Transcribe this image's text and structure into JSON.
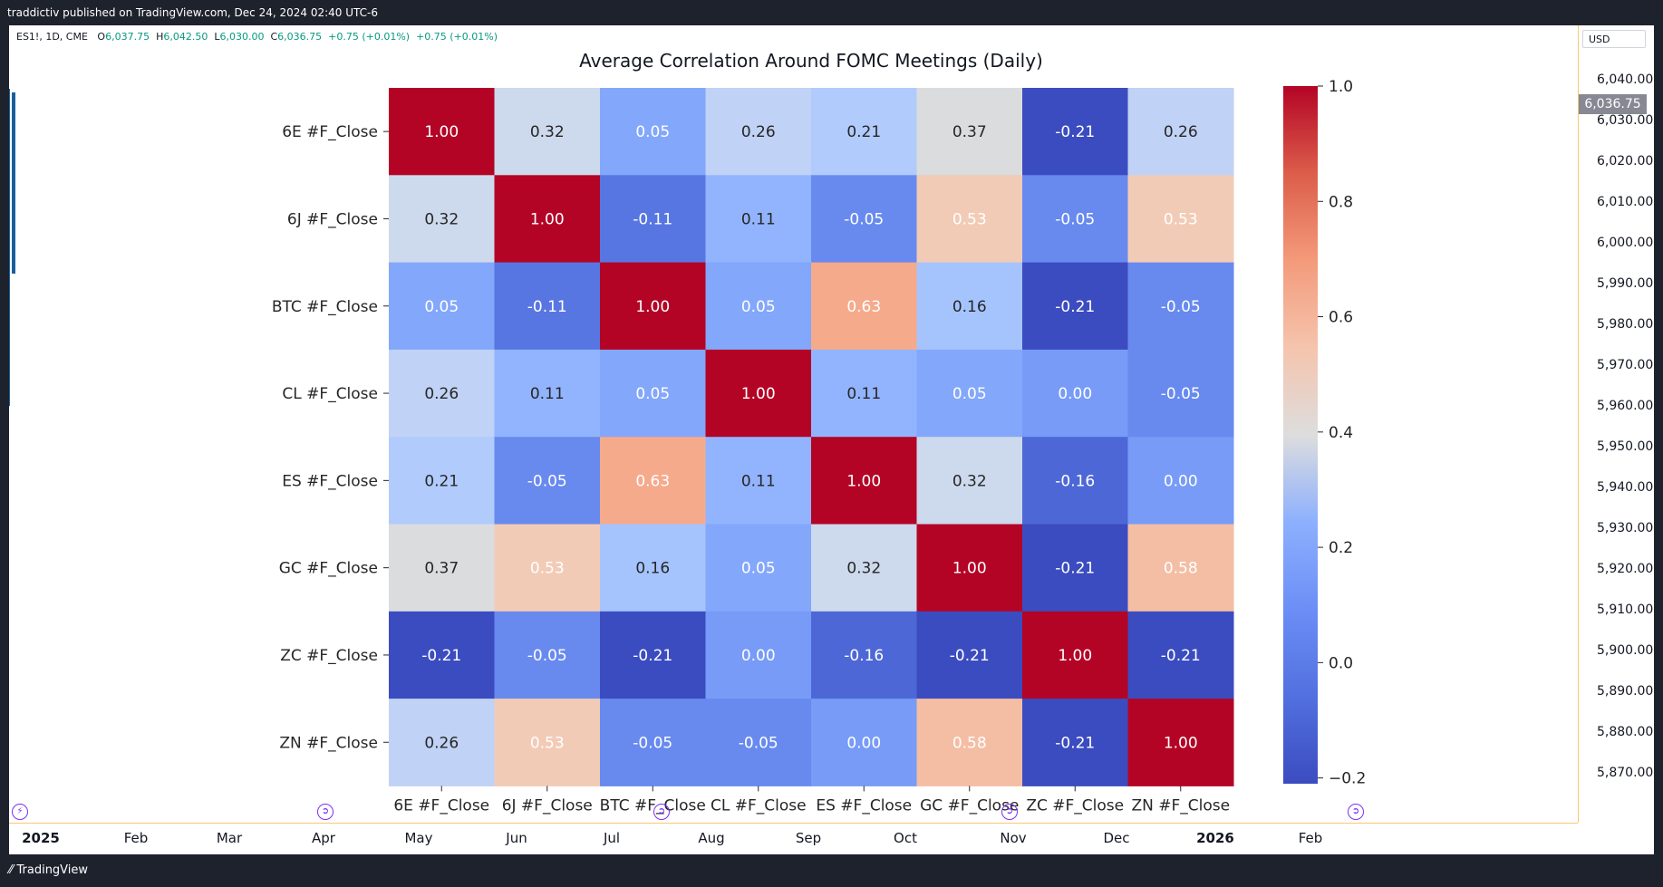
{
  "header": {
    "published_text": "traddictiv published on TradingView.com, Dec 24, 2024 02:40 UTC-6"
  },
  "symbol_legend": {
    "symbol": "ES1!, 1D, CME",
    "open_label": "O",
    "open": "6,037.75",
    "high_label": "H",
    "high": "6,042.50",
    "low_label": "L",
    "low": "6,030.00",
    "close_label": "C",
    "close": "6,036.75",
    "change": "+0.75 (+0.01%)",
    "change2": "+0.75 (+0.01%)"
  },
  "currency_button": "USD",
  "price_axis": {
    "current_price": "6,036.75",
    "labels": [
      "6,040.00",
      "6,030.00",
      "6,020.00",
      "6,010.00",
      "6,000.00",
      "5,990.00",
      "5,980.00",
      "5,970.00",
      "5,960.00",
      "5,950.00",
      "5,940.00",
      "5,930.00",
      "5,920.00",
      "5,910.00",
      "5,900.00",
      "5,890.00",
      "5,880.00",
      "5,870.00"
    ]
  },
  "time_axis": {
    "labels": [
      "2025",
      "Feb",
      "Mar",
      "Apr",
      "May",
      "Jun",
      "Jul",
      "Aug",
      "Sep",
      "Oct",
      "Nov",
      "Dec",
      "2026",
      "Feb"
    ]
  },
  "footer": {
    "brand": "TradingView"
  },
  "chart_data": {
    "type": "heatmap",
    "title": "Average Correlation Around FOMC Meetings (Daily)",
    "rows": [
      "6E #F_Close",
      "6J #F_Close",
      "BTC #F_Close",
      "CL #F_Close",
      "ES #F_Close",
      "GC #F_Close",
      "ZC #F_Close",
      "ZN #F_Close"
    ],
    "columns": [
      "6E #F_Close",
      "6J #F_Close",
      "BTC #F_Close",
      "CL #F_Close",
      "ES #F_Close",
      "GC #F_Close",
      "ZC #F_Close",
      "ZN #F_Close"
    ],
    "values": [
      [
        1.0,
        0.32,
        0.05,
        0.26,
        0.21,
        0.37,
        -0.21,
        0.26
      ],
      [
        0.32,
        1.0,
        -0.11,
        0.11,
        -0.05,
        0.53,
        -0.05,
        0.53
      ],
      [
        0.05,
        -0.11,
        1.0,
        0.05,
        0.63,
        0.16,
        -0.21,
        -0.05
      ],
      [
        0.26,
        0.11,
        0.05,
        1.0,
        0.11,
        0.05,
        0.0,
        -0.05
      ],
      [
        0.21,
        -0.05,
        0.63,
        0.11,
        1.0,
        0.32,
        -0.16,
        0.0
      ],
      [
        0.37,
        0.53,
        0.16,
        0.05,
        0.32,
        1.0,
        -0.21,
        0.58
      ],
      [
        -0.21,
        -0.05,
        -0.21,
        0.0,
        -0.16,
        -0.21,
        1.0,
        -0.21
      ],
      [
        0.26,
        0.53,
        -0.05,
        -0.05,
        0.0,
        0.58,
        -0.21,
        1.0
      ]
    ],
    "colormap": "coolwarm",
    "vmin": -0.21,
    "vmax": 1.0,
    "colorbar_ticks": [
      1.0,
      0.8,
      0.6,
      0.4,
      0.2,
      0.0,
      -0.2
    ],
    "colorbar_tick_labels": [
      "1.0",
      "0.8",
      "0.6",
      "0.4",
      "0.2",
      "0.0",
      "−0.2"
    ]
  }
}
